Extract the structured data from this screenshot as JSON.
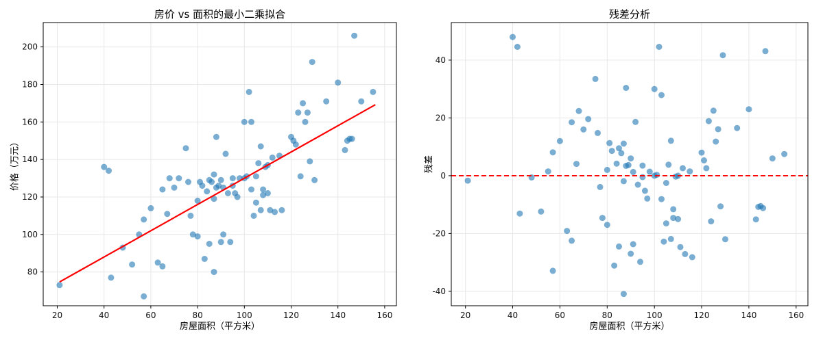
{
  "figure": {
    "background": "#ffffff"
  },
  "chart_data": [
    {
      "type": "scatter",
      "title": "房价 vs 面积的最小二乘拟合",
      "xlabel": "房屋面积（平方米）",
      "ylabel": "价格（万元）",
      "xlim": [
        14,
        165
      ],
      "ylim": [
        62,
        213
      ],
      "xticks": [
        20,
        40,
        60,
        80,
        100,
        120,
        140,
        160
      ],
      "yticks": [
        80,
        100,
        120,
        140,
        160,
        180,
        200
      ],
      "grid": true,
      "grid_color": "#e7e7e7",
      "marker_color": "#1f77b4",
      "marker_alpha": 0.6,
      "fit_line": {
        "slope": 0.7,
        "intercept": 60,
        "x_start": 21,
        "x_end": 156,
        "color": "#ff0000",
        "style": "solid"
      },
      "points": [
        [
          21,
          73
        ],
        [
          40,
          136
        ],
        [
          42,
          134
        ],
        [
          43,
          77
        ],
        [
          48,
          93
        ],
        [
          52,
          84
        ],
        [
          55,
          100
        ],
        [
          57,
          108
        ],
        [
          57,
          67
        ],
        [
          60,
          114
        ],
        [
          63,
          85
        ],
        [
          65,
          83
        ],
        [
          65,
          124
        ],
        [
          67,
          111
        ],
        [
          68,
          130
        ],
        [
          70,
          125
        ],
        [
          72,
          130
        ],
        [
          75,
          146
        ],
        [
          76,
          128
        ],
        [
          77,
          110
        ],
        [
          78,
          100
        ],
        [
          80,
          99
        ],
        [
          80,
          118
        ],
        [
          81,
          128
        ],
        [
          82,
          126
        ],
        [
          83,
          87
        ],
        [
          84,
          123
        ],
        [
          85,
          129
        ],
        [
          85,
          95
        ],
        [
          86,
          128
        ],
        [
          87,
          119
        ],
        [
          87,
          132
        ],
        [
          87,
          80
        ],
        [
          88,
          152
        ],
        [
          88,
          125
        ],
        [
          89,
          126
        ],
        [
          90,
          129
        ],
        [
          90,
          96
        ],
        [
          91,
          100
        ],
        [
          91,
          125
        ],
        [
          92,
          143
        ],
        [
          93,
          122
        ],
        [
          94,
          96
        ],
        [
          95,
          130
        ],
        [
          95,
          126
        ],
        [
          96,
          122
        ],
        [
          97,
          120
        ],
        [
          98,
          130
        ],
        [
          100,
          160
        ],
        [
          100,
          130
        ],
        [
          101,
          131
        ],
        [
          102,
          176
        ],
        [
          103,
          160
        ],
        [
          103,
          124
        ],
        [
          104,
          110
        ],
        [
          105,
          131
        ],
        [
          105,
          117
        ],
        [
          106,
          138
        ],
        [
          107,
          147
        ],
        [
          107,
          113
        ],
        [
          108,
          121
        ],
        [
          108,
          124
        ],
        [
          109,
          136
        ],
        [
          110,
          137
        ],
        [
          110,
          122
        ],
        [
          111,
          113
        ],
        [
          112,
          141
        ],
        [
          113,
          112
        ],
        [
          115,
          142
        ],
        [
          116,
          113
        ],
        [
          120,
          152
        ],
        [
          121,
          150
        ],
        [
          122,
          148
        ],
        [
          123,
          165
        ],
        [
          124,
          131
        ],
        [
          125,
          170
        ],
        [
          126,
          160
        ],
        [
          127,
          165
        ],
        [
          128,
          139
        ],
        [
          129,
          192
        ],
        [
          130,
          129
        ],
        [
          135,
          171
        ],
        [
          140,
          181
        ],
        [
          143,
          145
        ],
        [
          144,
          150
        ],
        [
          145,
          151
        ],
        [
          146,
          151
        ],
        [
          147,
          206
        ],
        [
          150,
          171
        ],
        [
          155,
          176
        ]
      ]
    },
    {
      "type": "scatter",
      "title": "残差分析",
      "xlabel": "房屋面积（平方米）",
      "ylabel": "残差",
      "xlim": [
        14,
        165
      ],
      "ylim": [
        -45,
        53
      ],
      "xticks": [
        20,
        40,
        60,
        80,
        100,
        120,
        140,
        160
      ],
      "yticks": [
        -40,
        -20,
        0,
        20,
        40
      ],
      "grid": true,
      "grid_color": "#e7e7e7",
      "marker_color": "#1f77b4",
      "marker_alpha": 0.6,
      "zero_line": {
        "y": 0,
        "color": "#ff0000",
        "style": "dashed"
      },
      "derivation": "residual = price - (0.7 * area + 60), same dataset as left chart",
      "points": [
        [
          21,
          -1.7
        ],
        [
          40,
          48
        ],
        [
          42,
          44.6
        ],
        [
          43,
          -13.1
        ],
        [
          48,
          -0.6
        ],
        [
          52,
          -12.4
        ],
        [
          55,
          1.5
        ],
        [
          57,
          8.1
        ],
        [
          57,
          -32.9
        ],
        [
          60,
          12
        ],
        [
          63,
          -19.1
        ],
        [
          65,
          -22.5
        ],
        [
          65,
          18.5
        ],
        [
          67,
          4.1
        ],
        [
          68,
          22.4
        ],
        [
          70,
          16
        ],
        [
          72,
          19.6
        ],
        [
          75,
          33.5
        ],
        [
          76,
          14.8
        ],
        [
          77,
          -3.9
        ],
        [
          78,
          -14.6
        ],
        [
          80,
          -17
        ],
        [
          80,
          2
        ],
        [
          81,
          11.3
        ],
        [
          82,
          8.6
        ],
        [
          83,
          -31.1
        ],
        [
          84,
          4.2
        ],
        [
          85,
          9.5
        ],
        [
          85,
          -24.5
        ],
        [
          86,
          7.8
        ],
        [
          87,
          -1.9
        ],
        [
          87,
          11.1
        ],
        [
          87,
          -40.9
        ],
        [
          88,
          30.4
        ],
        [
          88,
          3.4
        ],
        [
          89,
          3.7
        ],
        [
          90,
          6
        ],
        [
          90,
          -27
        ],
        [
          91,
          -23.7
        ],
        [
          91,
          1.3
        ],
        [
          92,
          18.6
        ],
        [
          93,
          -3.1
        ],
        [
          94,
          -29.8
        ],
        [
          95,
          3.5
        ],
        [
          95,
          -0.5
        ],
        [
          96,
          -5.2
        ],
        [
          97,
          -7.9
        ],
        [
          98,
          1.4
        ],
        [
          100,
          30
        ],
        [
          100,
          0
        ],
        [
          101,
          0.3
        ],
        [
          102,
          44.6
        ],
        [
          103,
          27.9
        ],
        [
          103,
          -8.1
        ],
        [
          104,
          -22.8
        ],
        [
          105,
          -2.5
        ],
        [
          105,
          -16.5
        ],
        [
          106,
          3.8
        ],
        [
          107,
          12.1
        ],
        [
          107,
          -21.9
        ],
        [
          108,
          -14.6
        ],
        [
          108,
          -11.6
        ],
        [
          109,
          -0.3
        ],
        [
          110,
          0
        ],
        [
          110,
          -15
        ],
        [
          111,
          -24.7
        ],
        [
          112,
          2.6
        ],
        [
          113,
          -27.1
        ],
        [
          115,
          1.5
        ],
        [
          116,
          -28.2
        ],
        [
          120,
          8
        ],
        [
          121,
          5.3
        ],
        [
          122,
          2.6
        ],
        [
          123,
          18.9
        ],
        [
          124,
          -15.8
        ],
        [
          125,
          22.5
        ],
        [
          126,
          11.8
        ],
        [
          127,
          16.1
        ],
        [
          128,
          -10.6
        ],
        [
          129,
          41.7
        ],
        [
          130,
          -22
        ],
        [
          135,
          16.5
        ],
        [
          140,
          23
        ],
        [
          143,
          -15.1
        ],
        [
          144,
          -10.8
        ],
        [
          145,
          -10.5
        ],
        [
          146,
          -11.2
        ],
        [
          147,
          43.1
        ],
        [
          150,
          6
        ],
        [
          155,
          7.5
        ]
      ]
    }
  ]
}
